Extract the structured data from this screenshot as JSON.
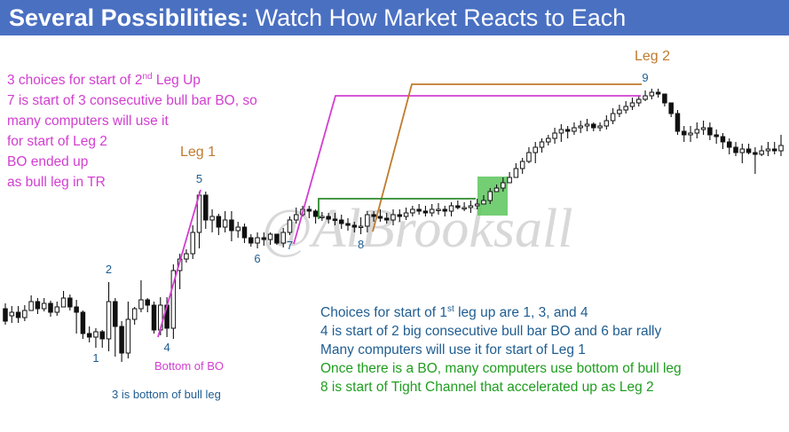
{
  "header": {
    "title_bold": "Several Possibilities:",
    "title_rest": " Watch How Market Reacts to Each"
  },
  "watermark": "@AlBrooksall",
  "colors": {
    "header_bg": "#4a70c2",
    "magenta": "#d23ed0",
    "orange": "#c07a2c",
    "green_line": "#2e8b2e",
    "green_box": "#5cc65c",
    "note_blue": "#1f5d91",
    "note_green": "#1f9d1f",
    "bull_bar": "#ffffff",
    "bear_bar": "#111111"
  },
  "annotations": {
    "magenta_notes": [
      {
        "pre": "3 choices for start of 2",
        "sup": "nd",
        "post": " Leg Up"
      },
      {
        "pre": "7 is start of 3 consecutive bull bar BO, so",
        "sup": "",
        "post": ""
      },
      {
        "pre": "many computers will use it",
        "sup": "",
        "post": ""
      },
      {
        "pre": "for start of Leg 2",
        "sup": "",
        "post": ""
      },
      {
        "pre": "BO ended up",
        "sup": "",
        "post": ""
      },
      {
        "pre": "as bull leg in TR",
        "sup": "",
        "post": ""
      }
    ],
    "leg1_label": "Leg 1",
    "leg2_label": "Leg 2",
    "bottom_of_bo": "Bottom of BO",
    "bottom_of_bull_leg": "3 is bottom of bull leg",
    "notes_blue": [
      {
        "pre": "Choices for start of 1",
        "sup": "st",
        "post": " leg up are 1, 3, and 4"
      },
      {
        "pre": "4 is start of 2 big consecutive bull bar BO and 6 bar rally",
        "sup": "",
        "post": ""
      },
      {
        "pre": "Many computers will use it for start of Leg 1",
        "sup": "",
        "post": ""
      }
    ],
    "notes_green": [
      "Once there is a BO, many computers use bottom of bull leg",
      "8 is start of Tight Channel that accelerated up as Leg 2"
    ]
  },
  "chart_data": {
    "type": "candlestick",
    "bar_labels": [
      {
        "label": "1",
        "bar": 14
      },
      {
        "label": "2",
        "bar": 16
      },
      {
        "label": "4",
        "bar": 25
      },
      {
        "label": "5",
        "bar": 30
      },
      {
        "label": "6",
        "bar": 39
      },
      {
        "label": "7",
        "bar": 44
      },
      {
        "label": "8",
        "bar": 55
      },
      {
        "label": "9",
        "bar": 99
      }
    ],
    "bars": [
      [
        348,
        362,
        342,
        366
      ],
      [
        356,
        352,
        345,
        364
      ],
      [
        352,
        358,
        345,
        364
      ],
      [
        358,
        350,
        344,
        362
      ],
      [
        350,
        340,
        333,
        347
      ],
      [
        340,
        348,
        336,
        354
      ],
      [
        348,
        342,
        336,
        351
      ],
      [
        342,
        352,
        339,
        357
      ],
      [
        352,
        346,
        340,
        356
      ],
      [
        346,
        336,
        328,
        339
      ],
      [
        336,
        346,
        332,
        350
      ],
      [
        346,
        352,
        338,
        376
      ],
      [
        352,
        376,
        350,
        382
      ],
      [
        376,
        380,
        368,
        386
      ],
      [
        380,
        374,
        370,
        392
      ],
      [
        374,
        382,
        372,
        392
      ],
      [
        382,
        340,
        318,
        396
      ],
      [
        340,
        368,
        336,
        402
      ],
      [
        368,
        398,
        362,
        408
      ],
      [
        398,
        360,
        340,
        404
      ],
      [
        360,
        348,
        346,
        366
      ],
      [
        348,
        338,
        316,
        352
      ],
      [
        338,
        344,
        336,
        352
      ],
      [
        344,
        372,
        340,
        376
      ],
      [
        372,
        344,
        335,
        378
      ],
      [
        344,
        370,
        335,
        380
      ],
      [
        370,
        305,
        298,
        382
      ],
      [
        305,
        292,
        286,
        326
      ],
      [
        292,
        286,
        281,
        296
      ],
      [
        286,
        262,
        254,
        292
      ],
      [
        262,
        220,
        216,
        280
      ],
      [
        220,
        248,
        216,
        258
      ],
      [
        248,
        244,
        236,
        262
      ],
      [
        244,
        256,
        241,
        265
      ],
      [
        256,
        248,
        238,
        262
      ],
      [
        248,
        260,
        238,
        272
      ],
      [
        260,
        256,
        250,
        268
      ],
      [
        256,
        268,
        252,
        274
      ],
      [
        268,
        274,
        264,
        278
      ],
      [
        274,
        268,
        262,
        280
      ],
      [
        268,
        270,
        262,
        277
      ],
      [
        270,
        264,
        262,
        276
      ],
      [
        264,
        274,
        266,
        276
      ],
      [
        274,
        262,
        257,
        279
      ],
      [
        262,
        248,
        244,
        265
      ],
      [
        248,
        242,
        234,
        252
      ],
      [
        242,
        236,
        232,
        244
      ],
      [
        236,
        238,
        232,
        246
      ],
      [
        238,
        244,
        236,
        252
      ],
      [
        244,
        244,
        239,
        249
      ],
      [
        244,
        247,
        240,
        252
      ],
      [
        247,
        248,
        240,
        254
      ],
      [
        248,
        252,
        242,
        258
      ],
      [
        252,
        254,
        246,
        260
      ],
      [
        254,
        256,
        250,
        262
      ],
      [
        256,
        255,
        245,
        264
      ],
      [
        255,
        242,
        238,
        262
      ],
      [
        242,
        244,
        238,
        250
      ],
      [
        244,
        246,
        236,
        250
      ],
      [
        246,
        248,
        240,
        252
      ],
      [
        248,
        242,
        236,
        254
      ],
      [
        242,
        244,
        236,
        250
      ],
      [
        244,
        240,
        234,
        248
      ],
      [
        240,
        236,
        232,
        244
      ],
      [
        236,
        238,
        230,
        242
      ],
      [
        238,
        240,
        232,
        244
      ],
      [
        240,
        236,
        230,
        244
      ],
      [
        236,
        236,
        229,
        242
      ],
      [
        236,
        238,
        232,
        244
      ],
      [
        238,
        232,
        228,
        244
      ],
      [
        232,
        234,
        226,
        236
      ],
      [
        234,
        234,
        228,
        238
      ],
      [
        234,
        232,
        226,
        240
      ],
      [
        232,
        230,
        224,
        236
      ],
      [
        230,
        226,
        220,
        230
      ],
      [
        226,
        216,
        212,
        230
      ],
      [
        216,
        212,
        208,
        216
      ],
      [
        212,
        206,
        200,
        216
      ],
      [
        206,
        200,
        194,
        204
      ],
      [
        200,
        190,
        184,
        196
      ],
      [
        190,
        182,
        178,
        196
      ],
      [
        182,
        172,
        166,
        184
      ],
      [
        172,
        166,
        160,
        184
      ],
      [
        166,
        160,
        156,
        172
      ],
      [
        160,
        156,
        152,
        164
      ],
      [
        156,
        150,
        144,
        162
      ],
      [
        150,
        146,
        140,
        160
      ],
      [
        146,
        148,
        142,
        156
      ],
      [
        148,
        144,
        138,
        152
      ],
      [
        144,
        142,
        136,
        150
      ],
      [
        142,
        140,
        134,
        148
      ],
      [
        140,
        144,
        138,
        148
      ],
      [
        144,
        142,
        138,
        148
      ],
      [
        142,
        136,
        130,
        146
      ],
      [
        136,
        128,
        122,
        140
      ],
      [
        128,
        124,
        118,
        132
      ],
      [
        124,
        120,
        114,
        128
      ],
      [
        120,
        116,
        110,
        124
      ],
      [
        116,
        112,
        108,
        120
      ],
      [
        112,
        108,
        102,
        114
      ],
      [
        108,
        104,
        100,
        112
      ],
      [
        104,
        106,
        100,
        110
      ],
      [
        106,
        116,
        108,
        120
      ],
      [
        116,
        128,
        118,
        132
      ],
      [
        128,
        148,
        124,
        152
      ],
      [
        148,
        152,
        142,
        160
      ],
      [
        152,
        150,
        142,
        160
      ],
      [
        150,
        146,
        138,
        156
      ],
      [
        146,
        144,
        136,
        152
      ],
      [
        144,
        152,
        138,
        158
      ],
      [
        152,
        154,
        146,
        162
      ],
      [
        154,
        160,
        150,
        168
      ],
      [
        160,
        166,
        156,
        174
      ],
      [
        166,
        172,
        160,
        176
      ],
      [
        172,
        168,
        162,
        184
      ],
      [
        168,
        172,
        162,
        174
      ],
      [
        172,
        174,
        166,
        196
      ],
      [
        174,
        170,
        164,
        176
      ],
      [
        170,
        168,
        160,
        176
      ],
      [
        168,
        170,
        160,
        174
      ],
      [
        170,
        164,
        152,
        176
      ]
    ]
  }
}
